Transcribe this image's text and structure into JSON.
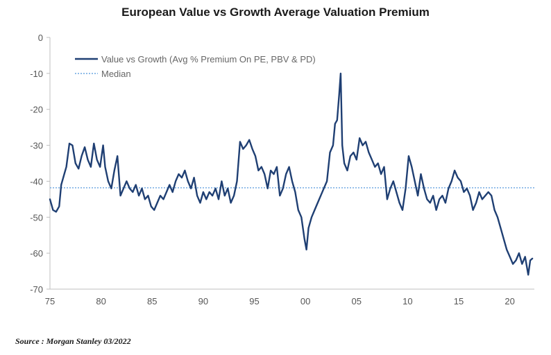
{
  "chart_data": {
    "type": "line",
    "title": "European Value vs Growth Average Valuation Premium",
    "xlabel": "",
    "ylabel": "",
    "ylim": [
      -70,
      0
    ],
    "xlim": [
      1975,
      2022.4
    ],
    "y_ticks": [
      "0",
      "-10",
      "-20",
      "-30",
      "-40",
      "-50",
      "-60",
      "-70"
    ],
    "x_ticks": [
      "75",
      "80",
      "85",
      "90",
      "95",
      "00",
      "05",
      "10",
      "15",
      "20"
    ],
    "grid": false,
    "legend_position": "top-left",
    "series": [
      {
        "name": "Value vs Growth (Avg % Premium On PE, PBV & PD)",
        "color": "#1f3f73",
        "style": "solid",
        "x": [
          1975.0,
          1975.3,
          1975.6,
          1975.9,
          1976.1,
          1976.4,
          1976.6,
          1976.9,
          1977.2,
          1977.5,
          1977.8,
          1978.1,
          1978.4,
          1978.7,
          1979.0,
          1979.3,
          1979.6,
          1979.9,
          1980.2,
          1980.4,
          1980.7,
          1981.0,
          1981.3,
          1981.6,
          1981.9,
          1982.2,
          1982.5,
          1982.8,
          1983.1,
          1983.4,
          1983.7,
          1984.0,
          1984.3,
          1984.6,
          1984.9,
          1985.2,
          1985.5,
          1985.8,
          1986.1,
          1986.4,
          1986.7,
          1987.0,
          1987.3,
          1987.6,
          1987.9,
          1988.2,
          1988.5,
          1988.8,
          1989.1,
          1989.4,
          1989.7,
          1990.0,
          1990.3,
          1990.6,
          1990.9,
          1991.2,
          1991.5,
          1991.8,
          1992.1,
          1992.4,
          1992.7,
          1993.0,
          1993.3,
          1993.6,
          1993.9,
          1994.2,
          1994.5,
          1994.8,
          1995.1,
          1995.4,
          1995.7,
          1996.0,
          1996.3,
          1996.6,
          1996.9,
          1997.2,
          1997.5,
          1997.8,
          1998.1,
          1998.4,
          1998.7,
          1999.0,
          1999.3,
          1999.6,
          1999.9,
          2000.1,
          2000.3,
          2000.6,
          2000.9,
          2001.2,
          2001.5,
          2001.8,
          2002.1,
          2002.4,
          2002.7,
          2002.9,
          2003.1,
          2003.3,
          2003.45,
          2003.6,
          2003.8,
          2004.1,
          2004.4,
          2004.7,
          2005.0,
          2005.3,
          2005.6,
          2005.9,
          2006.2,
          2006.5,
          2006.8,
          2007.1,
          2007.4,
          2007.7,
          2008.0,
          2008.3,
          2008.6,
          2008.9,
          2009.2,
          2009.5,
          2009.8,
          2010.1,
          2010.4,
          2010.7,
          2011.0,
          2011.3,
          2011.6,
          2011.9,
          2012.2,
          2012.5,
          2012.8,
          2013.1,
          2013.4,
          2013.7,
          2014.0,
          2014.3,
          2014.6,
          2014.9,
          2015.2,
          2015.5,
          2015.8,
          2016.1,
          2016.4,
          2016.7,
          2017.0,
          2017.3,
          2017.6,
          2017.9,
          2018.2,
          2018.5,
          2018.8,
          2019.1,
          2019.4,
          2019.7,
          2020.0,
          2020.3,
          2020.6,
          2020.9,
          2021.2,
          2021.5,
          2021.8,
          2022.0,
          2022.2
        ],
        "values": [
          -45,
          -48,
          -48.5,
          -47,
          -41,
          -38,
          -36,
          -29.5,
          -30,
          -35,
          -36.5,
          -33,
          -30.5,
          -34,
          -36,
          -29.5,
          -34,
          -36,
          -30,
          -36,
          -40,
          -42,
          -37,
          -33,
          -44,
          -42,
          -40,
          -42,
          -43,
          -41,
          -44,
          -42,
          -45,
          -44,
          -47,
          -48,
          -46,
          -44,
          -45,
          -43,
          -41,
          -43,
          -40,
          -38,
          -39,
          -37,
          -40,
          -42,
          -39,
          -44,
          -46,
          -43,
          -45,
          -43,
          -44,
          -42,
          -45,
          -40,
          -44,
          -42,
          -46,
          -44,
          -40,
          -29,
          -31,
          -30,
          -28.5,
          -31,
          -33,
          -37,
          -36,
          -38,
          -42,
          -37,
          -38,
          -36,
          -44,
          -42,
          -38,
          -36,
          -40,
          -43,
          -48,
          -50,
          -56,
          -59,
          -53,
          -50,
          -48,
          -46,
          -44,
          -42,
          -40,
          -32,
          -30,
          -24,
          -23,
          -16,
          -10,
          -30,
          -35,
          -37,
          -33,
          -32,
          -34,
          -28,
          -30,
          -29,
          -32,
          -34,
          -36,
          -35,
          -38,
          -36,
          -45,
          -42,
          -40,
          -43,
          -46,
          -48,
          -42,
          -33,
          -36,
          -40,
          -44,
          -38,
          -42,
          -45,
          -46,
          -44,
          -48,
          -45,
          -44,
          -46,
          -42,
          -40,
          -37,
          -39,
          -40,
          -43,
          -42,
          -44,
          -48,
          -46,
          -43,
          -45,
          -44,
          -43,
          -44,
          -48,
          -50,
          -53,
          -56,
          -59,
          -61,
          -63,
          -62,
          -60,
          -63,
          -61,
          -66,
          -62,
          -61.5
        ]
      },
      {
        "name": "Median",
        "color": "#7fb2e5",
        "style": "dotted",
        "values": [
          -41.8
        ]
      }
    ]
  },
  "source": "Source : Morgan Stanley 03/2022"
}
